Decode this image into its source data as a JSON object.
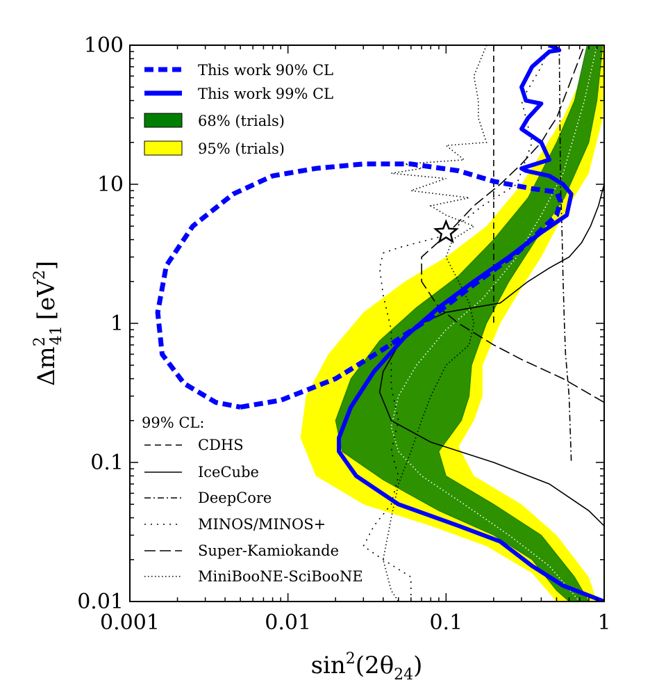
{
  "chart_data": {
    "type": "line",
    "xlabel_main": "sin",
    "xlabel_sup": "2",
    "xlabel_paren": "(2θ",
    "xlabel_sub": "24",
    "xlabel_close": ")",
    "ylabel_main": "Δm",
    "ylabel_sup": "2",
    "ylabel_sub": "41",
    "ylabel_unit": "[eV",
    "ylabel_unit_sup": "2",
    "ylabel_unit_close": "]",
    "xscale": "log",
    "yscale": "log",
    "xlim": [
      0.001,
      1
    ],
    "ylim": [
      0.01,
      100
    ],
    "xticks": [
      0.001,
      0.01,
      0.1,
      1
    ],
    "xtick_labels": [
      "0.001",
      "0.01",
      "0.1",
      "1"
    ],
    "yticks": [
      0.01,
      0.1,
      1,
      10,
      100
    ],
    "ytick_labels": [
      "0.01",
      "0.1",
      "1",
      "10",
      "100"
    ],
    "grid": false,
    "legend_top": [
      {
        "label": "This work 90% CL",
        "kind": "line",
        "color": "#0000ff",
        "style": "dashed-thick"
      },
      {
        "label": "This work 99% CL",
        "kind": "line",
        "color": "#0000ff",
        "style": "solid-thick"
      },
      {
        "label": "68% (trials)",
        "kind": "patch",
        "color": "#007f00"
      },
      {
        "label": "95% (trials)",
        "kind": "patch",
        "color": "#ffff00"
      }
    ],
    "legend_bottom_title": "99% CL:",
    "legend_bottom": [
      {
        "label": "CDHS",
        "style": "dashed"
      },
      {
        "label": "IceCube",
        "style": "solid"
      },
      {
        "label": "DeepCore",
        "style": "dashdot"
      },
      {
        "label": "MINOS/MINOS+",
        "style": "dotted-sparse"
      },
      {
        "label": "Super-Kamiokande",
        "style": "longdash"
      },
      {
        "label": "MiniBooNE-SciBooNE",
        "style": "dotted"
      }
    ],
    "best_fit": {
      "x": 0.1,
      "y": 4.5,
      "marker": "star"
    },
    "colors": {
      "band95": "#ffff00",
      "band68": "#228b00",
      "thiswork": "#0000ff",
      "median": "#ffffff",
      "other": "#000000"
    },
    "band95": {
      "left": [
        [
          0.9,
          100
        ],
        [
          0.55,
          30
        ],
        [
          0.3,
          10
        ],
        [
          0.18,
          5
        ],
        [
          0.1,
          3
        ],
        [
          0.055,
          2
        ],
        [
          0.03,
          1.2
        ],
        [
          0.018,
          0.6
        ],
        [
          0.013,
          0.3
        ],
        [
          0.012,
          0.15
        ],
        [
          0.015,
          0.08
        ],
        [
          0.03,
          0.05
        ],
        [
          0.08,
          0.035
        ],
        [
          0.18,
          0.025
        ],
        [
          0.35,
          0.016
        ],
        [
          0.5,
          0.01
        ]
      ],
      "right": [
        [
          1.0,
          100
        ],
        [
          0.98,
          30
        ],
        [
          0.8,
          12
        ],
        [
          0.55,
          6
        ],
        [
          0.4,
          3
        ],
        [
          0.3,
          1.8
        ],
        [
          0.22,
          1.0
        ],
        [
          0.17,
          0.5
        ],
        [
          0.17,
          0.3
        ],
        [
          0.15,
          0.2
        ],
        [
          0.12,
          0.13
        ],
        [
          0.15,
          0.08
        ],
        [
          0.3,
          0.05
        ],
        [
          0.5,
          0.03
        ],
        [
          0.8,
          0.015
        ],
        [
          0.9,
          0.01
        ]
      ]
    },
    "band68": {
      "left": [
        [
          0.78,
          100
        ],
        [
          0.65,
          40
        ],
        [
          0.5,
          20
        ],
        [
          0.33,
          8
        ],
        [
          0.2,
          4
        ],
        [
          0.12,
          2.2
        ],
        [
          0.065,
          1.3
        ],
        [
          0.038,
          0.75
        ],
        [
          0.025,
          0.4
        ],
        [
          0.02,
          0.2
        ],
        [
          0.022,
          0.12
        ],
        [
          0.04,
          0.075
        ],
        [
          0.09,
          0.045
        ],
        [
          0.2,
          0.03
        ],
        [
          0.35,
          0.02
        ],
        [
          0.5,
          0.012
        ],
        [
          0.6,
          0.01
        ]
      ],
      "right": [
        [
          0.98,
          100
        ],
        [
          0.9,
          40
        ],
        [
          0.8,
          20
        ],
        [
          0.56,
          8
        ],
        [
          0.37,
          4
        ],
        [
          0.25,
          2
        ],
        [
          0.18,
          1.0
        ],
        [
          0.145,
          0.5
        ],
        [
          0.14,
          0.3
        ],
        [
          0.125,
          0.2
        ],
        [
          0.09,
          0.12
        ],
        [
          0.1,
          0.08
        ],
        [
          0.2,
          0.05
        ],
        [
          0.4,
          0.03
        ],
        [
          0.65,
          0.015
        ],
        [
          0.8,
          0.01
        ]
      ]
    },
    "median": [
      [
        0.9,
        100
      ],
      [
        0.75,
        40
      ],
      [
        0.55,
        12
      ],
      [
        0.4,
        6
      ],
      [
        0.28,
        3
      ],
      [
        0.17,
        1.5
      ],
      [
        0.1,
        0.9
      ],
      [
        0.065,
        0.5
      ],
      [
        0.05,
        0.3
      ],
      [
        0.045,
        0.18
      ],
      [
        0.05,
        0.12
      ],
      [
        0.07,
        0.08
      ],
      [
        0.13,
        0.05
      ],
      [
        0.25,
        0.03
      ],
      [
        0.45,
        0.018
      ],
      [
        0.7,
        0.01
      ]
    ],
    "thiswork_90": [
      [
        0.005,
        0.25
      ],
      [
        0.009,
        0.28
      ],
      [
        0.02,
        0.4
      ],
      [
        0.04,
        0.65
      ],
      [
        0.08,
        1.1
      ],
      [
        0.15,
        1.9
      ],
      [
        0.28,
        3.2
      ],
      [
        0.4,
        4.7
      ],
      [
        0.5,
        6.0
      ],
      [
        0.53,
        7.5
      ],
      [
        0.5,
        8.8
      ],
      [
        0.35,
        9.3
      ],
      [
        0.2,
        10.5
      ],
      [
        0.12,
        12.5
      ],
      [
        0.06,
        14.0
      ],
      [
        0.03,
        14.0
      ],
      [
        0.015,
        13.0
      ],
      [
        0.008,
        11.5
      ],
      [
        0.0045,
        8.5
      ],
      [
        0.0025,
        5.0
      ],
      [
        0.0017,
        2.6
      ],
      [
        0.0015,
        1.2
      ],
      [
        0.0016,
        0.6
      ],
      [
        0.0022,
        0.37
      ],
      [
        0.0035,
        0.27
      ],
      [
        0.005,
        0.25
      ]
    ],
    "thiswork_99": [
      [
        0.45,
        100
      ],
      [
        0.5,
        95
      ],
      [
        0.52,
        92
      ],
      [
        0.45,
        90
      ],
      [
        0.4,
        80
      ],
      [
        0.35,
        70
      ],
      [
        0.3,
        50
      ],
      [
        0.32,
        40
      ],
      [
        0.4,
        38
      ],
      [
        0.33,
        30
      ],
      [
        0.3,
        25
      ],
      [
        0.4,
        20
      ],
      [
        0.45,
        15
      ],
      [
        0.3,
        13
      ],
      [
        0.32,
        12.5
      ],
      [
        0.45,
        11.5
      ],
      [
        0.55,
        10
      ],
      [
        0.62,
        8.5
      ],
      [
        0.58,
        6
      ],
      [
        0.4,
        4.5
      ],
      [
        0.25,
        3
      ],
      [
        0.15,
        2
      ],
      [
        0.09,
        1.3
      ],
      [
        0.055,
        0.8
      ],
      [
        0.035,
        0.45
      ],
      [
        0.025,
        0.25
      ],
      [
        0.021,
        0.15
      ],
      [
        0.021,
        0.12
      ],
      [
        0.027,
        0.08
      ],
      [
        0.05,
        0.05
      ],
      [
        0.12,
        0.035
      ],
      [
        0.22,
        0.027
      ],
      [
        0.35,
        0.018
      ],
      [
        0.55,
        0.013
      ],
      [
        1.0,
        0.01
      ]
    ],
    "cdhs": [
      [
        0.2,
        100
      ],
      [
        0.2,
        1.0
      ]
    ],
    "icecube": [
      [
        1.0,
        10
      ],
      [
        0.92,
        7
      ],
      [
        0.82,
        5
      ],
      [
        0.72,
        3.8
      ],
      [
        0.6,
        3
      ],
      [
        0.45,
        2.5
      ],
      [
        0.33,
        2.0
      ],
      [
        0.22,
        1.4
      ],
      [
        0.15,
        1.3
      ],
      [
        0.1,
        1.2
      ],
      [
        0.07,
        1.0
      ],
      [
        0.05,
        0.7
      ],
      [
        0.04,
        0.45
      ],
      [
        0.038,
        0.32
      ],
      [
        0.045,
        0.2
      ],
      [
        0.08,
        0.14
      ],
      [
        0.2,
        0.1
      ],
      [
        0.45,
        0.07
      ],
      [
        0.8,
        0.045
      ],
      [
        1.0,
        0.035
      ]
    ],
    "deepcore": [
      [
        0.52,
        100
      ],
      [
        0.53,
        10
      ],
      [
        0.54,
        5
      ],
      [
        0.55,
        2
      ],
      [
        0.56,
        1
      ],
      [
        0.57,
        0.6
      ],
      [
        0.6,
        0.3
      ],
      [
        0.62,
        0.1
      ]
    ],
    "minos": [
      [
        0.06,
        0.01
      ],
      [
        0.06,
        0.015
      ],
      [
        0.04,
        0.02
      ],
      [
        0.03,
        0.025
      ],
      [
        0.035,
        0.035
      ],
      [
        0.045,
        0.05
      ],
      [
        0.05,
        0.08
      ],
      [
        0.045,
        0.12
      ],
      [
        0.05,
        0.2
      ],
      [
        0.045,
        0.35
      ],
      [
        0.045,
        0.6
      ],
      [
        0.045,
        0.9
      ],
      [
        0.04,
        1.6
      ],
      [
        0.038,
        2.5
      ],
      [
        0.04,
        3.2
      ],
      [
        0.05,
        3.5
      ],
      [
        0.1,
        4.3
      ],
      [
        0.13,
        5.5
      ],
      [
        0.17,
        7
      ],
      [
        0.28,
        10
      ],
      [
        0.35,
        20
      ],
      [
        0.3,
        40
      ],
      [
        0.4,
        70
      ],
      [
        0.45,
        100
      ]
    ],
    "superk": [
      [
        1.0,
        0.27
      ],
      [
        0.55,
        0.4
      ],
      [
        0.3,
        0.55
      ],
      [
        0.2,
        0.7
      ],
      [
        0.12,
        1.0
      ],
      [
        0.09,
        1.3
      ],
      [
        0.07,
        2
      ],
      [
        0.07,
        3
      ],
      [
        0.1,
        4.3
      ],
      [
        0.15,
        7
      ],
      [
        0.22,
        10
      ],
      [
        0.3,
        14
      ],
      [
        0.4,
        20
      ],
      [
        0.45,
        25
      ],
      [
        0.5,
        30
      ],
      [
        0.75,
        100
      ]
    ],
    "miniboone": [
      [
        0.18,
        100
      ],
      [
        0.15,
        60
      ],
      [
        0.16,
        40
      ],
      [
        0.16,
        30
      ],
      [
        0.18,
        20
      ],
      [
        0.1,
        19
      ],
      [
        0.13,
        15
      ],
      [
        0.055,
        14
      ],
      [
        0.07,
        13
      ],
      [
        0.045,
        12
      ],
      [
        0.1,
        11
      ],
      [
        0.06,
        9
      ],
      [
        0.14,
        8
      ],
      [
        0.08,
        7
      ],
      [
        0.1,
        6
      ],
      [
        0.15,
        5
      ],
      [
        0.11,
        4
      ],
      [
        0.1,
        3
      ],
      [
        0.12,
        2
      ],
      [
        0.14,
        1.4
      ],
      [
        0.15,
        1.0
      ],
      [
        0.14,
        0.7
      ],
      [
        0.1,
        0.5
      ],
      [
        0.08,
        0.3
      ],
      [
        0.07,
        0.2
      ],
      [
        0.06,
        0.12
      ],
      [
        0.05,
        0.07
      ],
      [
        0.045,
        0.04
      ],
      [
        0.04,
        0.02
      ],
      [
        0.045,
        0.012
      ],
      [
        0.05,
        0.01
      ]
    ]
  }
}
